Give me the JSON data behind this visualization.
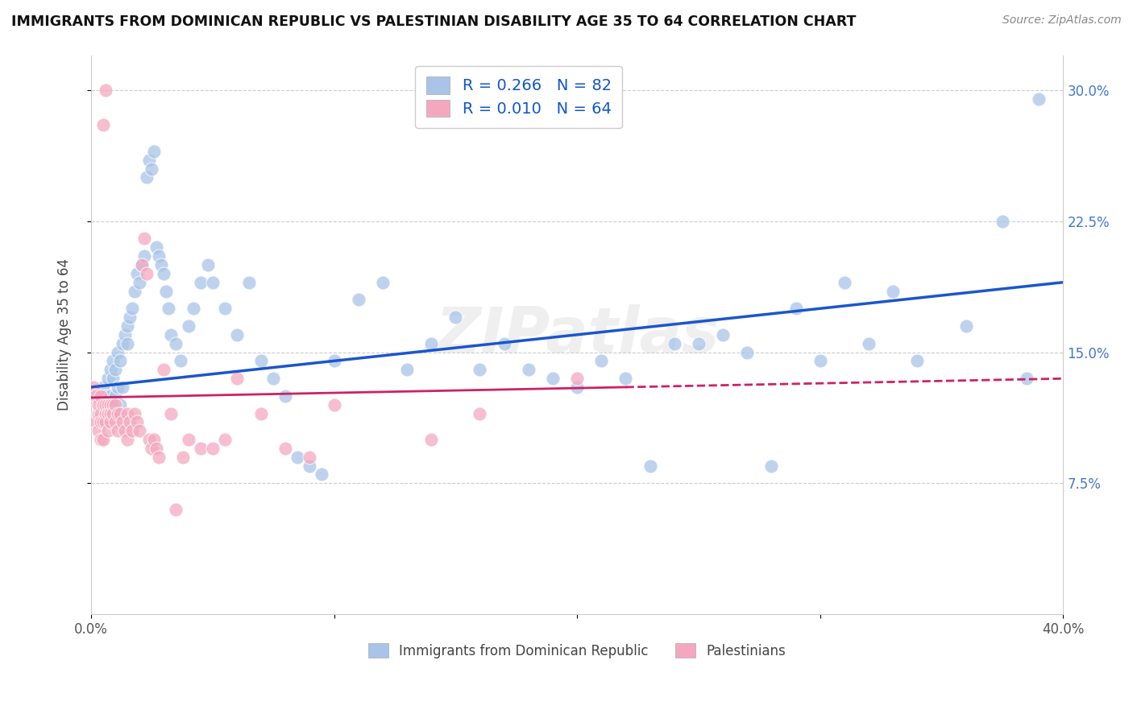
{
  "title": "IMMIGRANTS FROM DOMINICAN REPUBLIC VS PALESTINIAN DISABILITY AGE 35 TO 64 CORRELATION CHART",
  "source": "Source: ZipAtlas.com",
  "ylabel": "Disability Age 35 to 64",
  "xmin": 0.0,
  "xmax": 0.4,
  "ymin": 0.0,
  "ymax": 0.32,
  "yticks": [
    0.075,
    0.15,
    0.225,
    0.3
  ],
  "ytick_labels": [
    "7.5%",
    "15.0%",
    "22.5%",
    "30.0%"
  ],
  "xticks": [
    0.0,
    0.1,
    0.2,
    0.3,
    0.4
  ],
  "xtick_labels": [
    "0.0%",
    "",
    "",
    "",
    "40.0%"
  ],
  "blue_R": 0.266,
  "blue_N": 82,
  "pink_R": 0.01,
  "pink_N": 64,
  "blue_color": "#A8C4E8",
  "pink_color": "#F4A8C0",
  "blue_line_color": "#1A56CC",
  "pink_line_color": "#CC2266",
  "watermark": "ZIPatlas",
  "legend_label_blue": "Immigrants from Dominican Republic",
  "legend_label_pink": "Palestinians",
  "blue_x": [
    0.005,
    0.006,
    0.007,
    0.007,
    0.008,
    0.008,
    0.009,
    0.009,
    0.01,
    0.01,
    0.011,
    0.011,
    0.012,
    0.012,
    0.013,
    0.013,
    0.014,
    0.015,
    0.015,
    0.016,
    0.017,
    0.018,
    0.019,
    0.02,
    0.021,
    0.022,
    0.023,
    0.024,
    0.025,
    0.026,
    0.027,
    0.028,
    0.029,
    0.03,
    0.031,
    0.032,
    0.033,
    0.035,
    0.037,
    0.04,
    0.042,
    0.045,
    0.048,
    0.05,
    0.055,
    0.06,
    0.065,
    0.07,
    0.075,
    0.08,
    0.085,
    0.09,
    0.095,
    0.1,
    0.11,
    0.12,
    0.13,
    0.14,
    0.15,
    0.16,
    0.17,
    0.18,
    0.19,
    0.2,
    0.21,
    0.22,
    0.23,
    0.24,
    0.25,
    0.26,
    0.27,
    0.28,
    0.29,
    0.3,
    0.31,
    0.32,
    0.33,
    0.34,
    0.36,
    0.375,
    0.385,
    0.39
  ],
  "blue_y": [
    0.13,
    0.125,
    0.135,
    0.12,
    0.14,
    0.125,
    0.135,
    0.145,
    0.125,
    0.14,
    0.13,
    0.15,
    0.12,
    0.145,
    0.13,
    0.155,
    0.16,
    0.165,
    0.155,
    0.17,
    0.175,
    0.185,
    0.195,
    0.19,
    0.2,
    0.205,
    0.25,
    0.26,
    0.255,
    0.265,
    0.21,
    0.205,
    0.2,
    0.195,
    0.185,
    0.175,
    0.16,
    0.155,
    0.145,
    0.165,
    0.175,
    0.19,
    0.2,
    0.19,
    0.175,
    0.16,
    0.19,
    0.145,
    0.135,
    0.125,
    0.09,
    0.085,
    0.08,
    0.145,
    0.18,
    0.19,
    0.14,
    0.155,
    0.17,
    0.14,
    0.155,
    0.14,
    0.135,
    0.13,
    0.145,
    0.135,
    0.085,
    0.155,
    0.155,
    0.16,
    0.15,
    0.085,
    0.175,
    0.145,
    0.19,
    0.155,
    0.185,
    0.145,
    0.165,
    0.225,
    0.135,
    0.295
  ],
  "pink_x": [
    0.001,
    0.002,
    0.002,
    0.003,
    0.003,
    0.003,
    0.004,
    0.004,
    0.004,
    0.004,
    0.005,
    0.005,
    0.005,
    0.006,
    0.006,
    0.006,
    0.007,
    0.007,
    0.007,
    0.008,
    0.008,
    0.008,
    0.009,
    0.009,
    0.01,
    0.01,
    0.011,
    0.011,
    0.012,
    0.013,
    0.014,
    0.015,
    0.015,
    0.016,
    0.017,
    0.018,
    0.019,
    0.02,
    0.021,
    0.022,
    0.023,
    0.024,
    0.025,
    0.026,
    0.027,
    0.028,
    0.03,
    0.033,
    0.035,
    0.038,
    0.04,
    0.045,
    0.05,
    0.055,
    0.06,
    0.07,
    0.08,
    0.09,
    0.1,
    0.14,
    0.16,
    0.2,
    0.005,
    0.006
  ],
  "pink_y": [
    0.13,
    0.125,
    0.11,
    0.115,
    0.12,
    0.105,
    0.115,
    0.125,
    0.11,
    0.1,
    0.12,
    0.11,
    0.1,
    0.115,
    0.12,
    0.11,
    0.12,
    0.115,
    0.105,
    0.12,
    0.115,
    0.11,
    0.12,
    0.115,
    0.12,
    0.11,
    0.115,
    0.105,
    0.115,
    0.11,
    0.105,
    0.115,
    0.1,
    0.11,
    0.105,
    0.115,
    0.11,
    0.105,
    0.2,
    0.215,
    0.195,
    0.1,
    0.095,
    0.1,
    0.095,
    0.09,
    0.14,
    0.115,
    0.06,
    0.09,
    0.1,
    0.095,
    0.095,
    0.1,
    0.135,
    0.115,
    0.095,
    0.09,
    0.12,
    0.1,
    0.115,
    0.135,
    0.28,
    0.3
  ]
}
